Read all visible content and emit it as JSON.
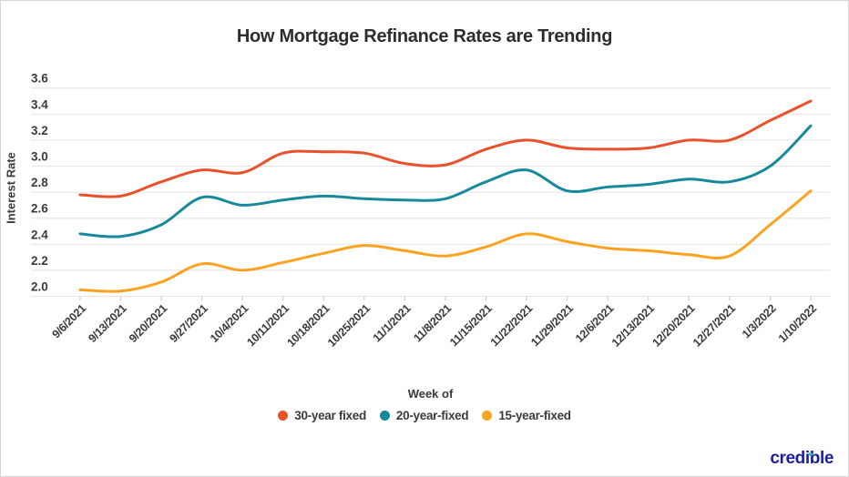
{
  "title": "How Mortgage Refinance Rates are Trending",
  "y_axis_label": "Interest Rate",
  "x_axis_label": "Week of",
  "legend": [
    {
      "label": "30-year fixed",
      "color": "#e8512b"
    },
    {
      "label": "20-year-fixed",
      "color": "#17899c"
    },
    {
      "label": "15-year-fixed",
      "color": "#fba321"
    }
  ],
  "logo": {
    "text": "credible",
    "color": "#1c1f9f",
    "i_dot_color": "#2eb7ac"
  },
  "chart_data": {
    "type": "line",
    "title": "How Mortgage Refinance Rates are Trending",
    "xlabel": "Week of",
    "ylabel": "Interest Rate",
    "x": [
      "9/6/2021",
      "9/13/2021",
      "9/20/2021",
      "9/27/2021",
      "10/4/2021",
      "10/11/2021",
      "10/18/2021",
      "10/25/2021",
      "11/1/2021",
      "11/8/2021",
      "11/15/2021",
      "11/22/2021",
      "11/29/2021",
      "12/6/2021",
      "12/13/2021",
      "12/20/2021",
      "12/27/2021",
      "1/3/2022",
      "1/10/2022"
    ],
    "series": [
      {
        "name": "30-year fixed",
        "color": "#e8512b",
        "values": [
          2.78,
          2.77,
          2.88,
          2.97,
          2.95,
          3.1,
          3.11,
          3.1,
          3.02,
          3.01,
          3.13,
          3.2,
          3.14,
          3.13,
          3.14,
          3.2,
          3.2,
          3.35,
          3.5
        ]
      },
      {
        "name": "20-year-fixed",
        "color": "#17899c",
        "values": [
          2.48,
          2.46,
          2.55,
          2.76,
          2.7,
          2.74,
          2.77,
          2.75,
          2.74,
          2.75,
          2.88,
          2.97,
          2.81,
          2.84,
          2.86,
          2.9,
          2.88,
          3.0,
          3.31
        ]
      },
      {
        "name": "15-year-fixed",
        "color": "#fba321",
        "values": [
          2.05,
          2.04,
          2.11,
          2.25,
          2.2,
          2.26,
          2.33,
          2.39,
          2.35,
          2.31,
          2.38,
          2.48,
          2.42,
          2.37,
          2.35,
          2.32,
          2.31,
          2.55,
          2.81
        ]
      }
    ],
    "ylim": [
      2.0,
      3.6
    ],
    "ytick_step": 0.2,
    "grid": true,
    "legend_position": "bottom"
  }
}
